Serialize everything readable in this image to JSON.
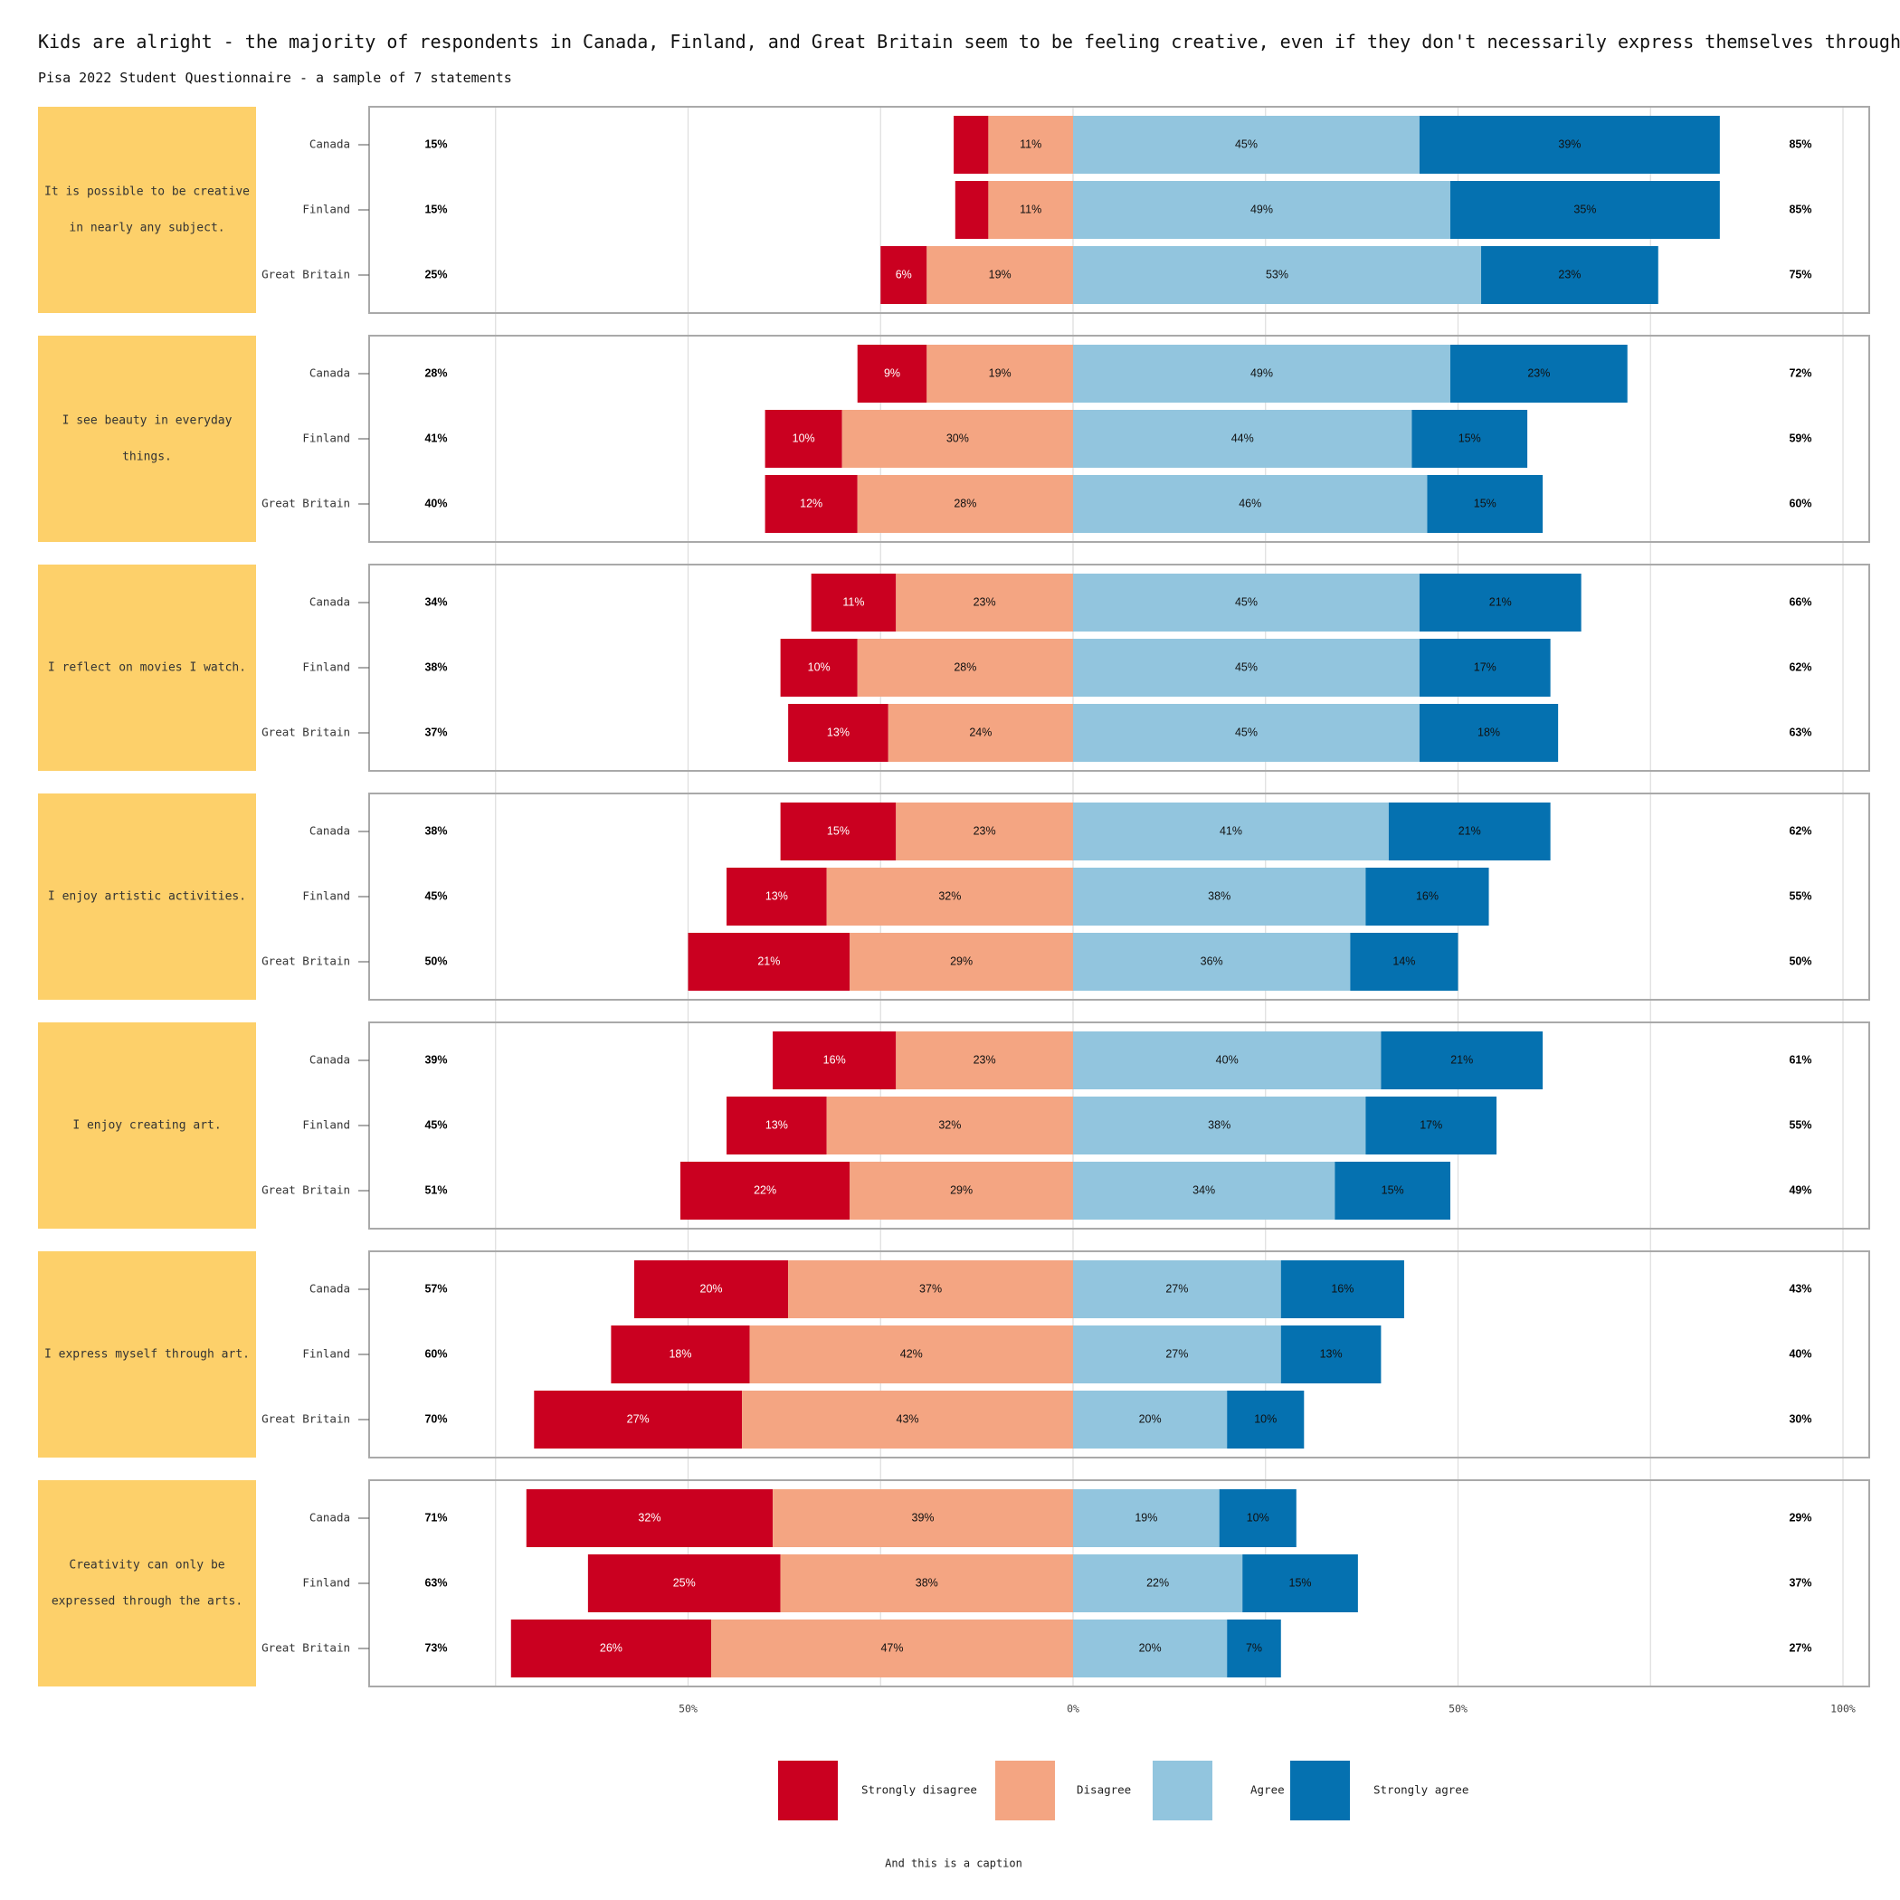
{
  "chart_data": {
    "type": "bar",
    "orientation": "horizontal-diverging-stacked",
    "title": "Kids are alright - the majority of respondents in Canada, Finland, and Great Britain seem to be feeling creative, even if they don't necessarily express themselves through art",
    "subtitle": "Pisa 2022 Student Questionnaire - a sample of 7 statements",
    "caption": "And this is a caption",
    "xlim": [
      -100,
      100
    ],
    "x_ticks": [
      {
        "value": -50,
        "label": "50%"
      },
      {
        "value": 0,
        "label": "0%"
      },
      {
        "value": 50,
        "label": "50%"
      },
      {
        "value": 100,
        "label": "100%"
      }
    ],
    "grid": true,
    "legend_position": "bottom",
    "categories": [
      {
        "name": "Strongly disagree",
        "color": "#ca0020",
        "text_color": "#ffffff"
      },
      {
        "name": "Disagree",
        "color": "#f4a582",
        "text_color": "#111111"
      },
      {
        "name": "Agree",
        "color": "#92c5de",
        "text_color": "#111111"
      },
      {
        "name": "Strongly agree",
        "color": "#0571b0",
        "text_color": "#111111"
      }
    ],
    "panel_color": "#fdd06a",
    "statements": [
      {
        "label": "It is possible to be creative in nearly any subject.",
        "lines": [
          "It is possible to be creative",
          "in nearly any subject."
        ],
        "rows": [
          {
            "country": "Canada",
            "sd": 4.5,
            "d": 11,
            "a": 45,
            "sa": 39,
            "sd_label": "",
            "d_label": "11%",
            "a_label": "45%",
            "sa_label": "39%",
            "neg_total": "15%",
            "pos_total": "85%"
          },
          {
            "country": "Finland",
            "sd": 4.3,
            "d": 11,
            "a": 49,
            "sa": 35,
            "sd_label": "",
            "d_label": "11%",
            "a_label": "49%",
            "sa_label": "35%",
            "neg_total": "15%",
            "pos_total": "85%"
          },
          {
            "country": "Great Britain",
            "sd": 6,
            "d": 19,
            "a": 53,
            "sa": 23,
            "sd_label": "6%",
            "d_label": "19%",
            "a_label": "53%",
            "sa_label": "23%",
            "neg_total": "25%",
            "pos_total": "75%"
          }
        ]
      },
      {
        "label": "I see beauty in everyday things.",
        "lines": [
          "I see beauty in everyday",
          "things."
        ],
        "rows": [
          {
            "country": "Canada",
            "sd": 9,
            "d": 19,
            "a": 49,
            "sa": 23,
            "sd_label": "9%",
            "d_label": "19%",
            "a_label": "49%",
            "sa_label": "23%",
            "neg_total": "28%",
            "pos_total": "72%"
          },
          {
            "country": "Finland",
            "sd": 10,
            "d": 30,
            "a": 44,
            "sa": 15,
            "sd_label": "10%",
            "d_label": "30%",
            "a_label": "44%",
            "sa_label": "15%",
            "neg_total": "41%",
            "pos_total": "59%"
          },
          {
            "country": "Great Britain",
            "sd": 12,
            "d": 28,
            "a": 46,
            "sa": 15,
            "sd_label": "12%",
            "d_label": "28%",
            "a_label": "46%",
            "sa_label": "15%",
            "neg_total": "40%",
            "pos_total": "60%"
          }
        ]
      },
      {
        "label": "I reflect on movies I watch.",
        "lines": [
          "I reflect on movies I watch."
        ],
        "rows": [
          {
            "country": "Canada",
            "sd": 11,
            "d": 23,
            "a": 45,
            "sa": 21,
            "sd_label": "11%",
            "d_label": "23%",
            "a_label": "45%",
            "sa_label": "21%",
            "neg_total": "34%",
            "pos_total": "66%"
          },
          {
            "country": "Finland",
            "sd": 10,
            "d": 28,
            "a": 45,
            "sa": 17,
            "sd_label": "10%",
            "d_label": "28%",
            "a_label": "45%",
            "sa_label": "17%",
            "neg_total": "38%",
            "pos_total": "62%"
          },
          {
            "country": "Great Britain",
            "sd": 13,
            "d": 24,
            "a": 45,
            "sa": 18,
            "sd_label": "13%",
            "d_label": "24%",
            "a_label": "45%",
            "sa_label": "18%",
            "neg_total": "37%",
            "pos_total": "63%"
          }
        ]
      },
      {
        "label": "I enjoy artistic activities.",
        "lines": [
          "I enjoy artistic activities."
        ],
        "rows": [
          {
            "country": "Canada",
            "sd": 15,
            "d": 23,
            "a": 41,
            "sa": 21,
            "sd_label": "15%",
            "d_label": "23%",
            "a_label": "41%",
            "sa_label": "21%",
            "neg_total": "38%",
            "pos_total": "62%"
          },
          {
            "country": "Finland",
            "sd": 13,
            "d": 32,
            "a": 38,
            "sa": 16,
            "sd_label": "13%",
            "d_label": "32%",
            "a_label": "38%",
            "sa_label": "16%",
            "neg_total": "45%",
            "pos_total": "55%"
          },
          {
            "country": "Great Britain",
            "sd": 21,
            "d": 29,
            "a": 36,
            "sa": 14,
            "sd_label": "21%",
            "d_label": "29%",
            "a_label": "36%",
            "sa_label": "14%",
            "neg_total": "50%",
            "pos_total": "50%"
          }
        ]
      },
      {
        "label": "I enjoy creating art.",
        "lines": [
          "I enjoy creating art."
        ],
        "rows": [
          {
            "country": "Canada",
            "sd": 16,
            "d": 23,
            "a": 40,
            "sa": 21,
            "sd_label": "16%",
            "d_label": "23%",
            "a_label": "40%",
            "sa_label": "21%",
            "neg_total": "39%",
            "pos_total": "61%"
          },
          {
            "country": "Finland",
            "sd": 13,
            "d": 32,
            "a": 38,
            "sa": 17,
            "sd_label": "13%",
            "d_label": "32%",
            "a_label": "38%",
            "sa_label": "17%",
            "neg_total": "45%",
            "pos_total": "55%"
          },
          {
            "country": "Great Britain",
            "sd": 22,
            "d": 29,
            "a": 34,
            "sa": 15,
            "sd_label": "22%",
            "d_label": "29%",
            "a_label": "34%",
            "sa_label": "15%",
            "neg_total": "51%",
            "pos_total": "49%"
          }
        ]
      },
      {
        "label": "I express myself through art.",
        "lines": [
          "I express myself through art."
        ],
        "rows": [
          {
            "country": "Canada",
            "sd": 20,
            "d": 37,
            "a": 27,
            "sa": 16,
            "sd_label": "20%",
            "d_label": "37%",
            "a_label": "27%",
            "sa_label": "16%",
            "neg_total": "57%",
            "pos_total": "43%"
          },
          {
            "country": "Finland",
            "sd": 18,
            "d": 42,
            "a": 27,
            "sa": 13,
            "sd_label": "18%",
            "d_label": "42%",
            "a_label": "27%",
            "sa_label": "13%",
            "neg_total": "60%",
            "pos_total": "40%"
          },
          {
            "country": "Great Britain",
            "sd": 27,
            "d": 43,
            "a": 20,
            "sa": 10,
            "sd_label": "27%",
            "d_label": "43%",
            "a_label": "20%",
            "sa_label": "10%",
            "neg_total": "70%",
            "pos_total": "30%"
          }
        ]
      },
      {
        "label": "Creativity can only be expressed through the arts.",
        "lines": [
          "Creativity can only be",
          "expressed through the arts."
        ],
        "rows": [
          {
            "country": "Canada",
            "sd": 32,
            "d": 39,
            "a": 19,
            "sa": 10,
            "sd_label": "32%",
            "d_label": "39%",
            "a_label": "19%",
            "sa_label": "10%",
            "neg_total": "71%",
            "pos_total": "29%"
          },
          {
            "country": "Finland",
            "sd": 25,
            "d": 38,
            "a": 22,
            "sa": 15,
            "sd_label": "25%",
            "d_label": "38%",
            "a_label": "22%",
            "sa_label": "15%",
            "neg_total": "63%",
            "pos_total": "37%"
          },
          {
            "country": "Great Britain",
            "sd": 26,
            "d": 47,
            "a": 20,
            "sa": 7,
            "sd_label": "26%",
            "d_label": "47%",
            "a_label": "20%",
            "sa_label": "7%",
            "neg_total": "73%",
            "pos_total": "27%"
          }
        ]
      }
    ]
  }
}
